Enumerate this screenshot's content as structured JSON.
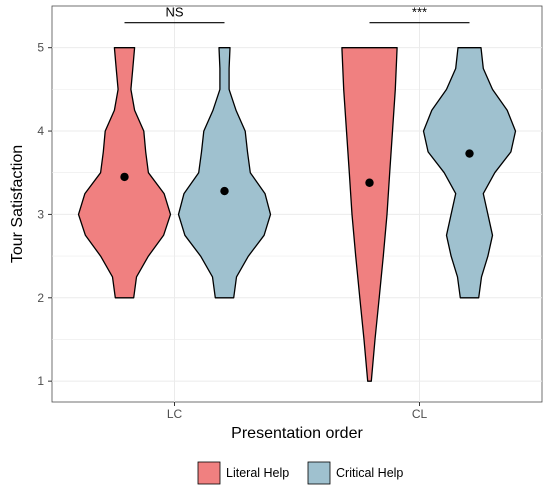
{
  "chart_data": {
    "type": "violin",
    "title": "",
    "xlabel": "Presentation order",
    "ylabel": "Tour Satisfaction",
    "categories": [
      "LC",
      "CL"
    ],
    "y_ticks": [
      1,
      2,
      3,
      4,
      5
    ],
    "ylim": [
      0.75,
      5.5
    ],
    "grid": true,
    "legend_position": "bottom",
    "series": [
      {
        "name": "Literal Help",
        "color": "#F08080",
        "means": [
          3.45,
          3.38
        ],
        "ranges": [
          [
            2,
            5
          ],
          [
            1,
            5
          ]
        ]
      },
      {
        "name": "Critical Help",
        "color": "#9FC1CF",
        "means": [
          3.28,
          3.73
        ],
        "ranges": [
          [
            2,
            5
          ],
          [
            2,
            5
          ]
        ]
      }
    ],
    "annotations": [
      {
        "category": "LC",
        "text": "NS"
      },
      {
        "category": "CL",
        "text": "***"
      }
    ]
  }
}
